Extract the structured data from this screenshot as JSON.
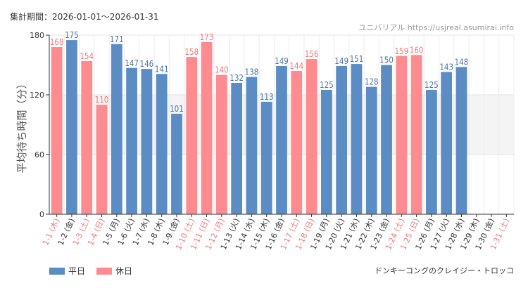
{
  "period_label": "集計期間：2026-01-01～2026-01-31",
  "site_label": "ユニバリアル https://usjreal.asumirai.info",
  "attraction_name": "ドンキーコングのクレイジー・トロッコ",
  "chart_data": {
    "type": "bar",
    "title": "",
    "xlabel": "",
    "ylabel": "平均待ち時間（分）",
    "ylim": [
      0,
      180
    ],
    "yticks": [
      0,
      60,
      120,
      180
    ],
    "shaded_band": [
      60,
      120
    ],
    "categories": [
      "1-1 (木)",
      "1-2 (金)",
      "1-3 (土)",
      "1-4 (日)",
      "1-5 (月)",
      "1-6 (火)",
      "1-7 (水)",
      "1-8 (木)",
      "1-9 (金)",
      "1-10 (土)",
      "1-11 (日)",
      "1-12 (月)",
      "1-13 (火)",
      "1-14 (水)",
      "1-15 (木)",
      "1-16 (金)",
      "1-17 (土)",
      "1-18 (日)",
      "1-19 (月)",
      "1-20 (火)",
      "1-21 (水)",
      "1-22 (木)",
      "1-23 (金)",
      "1-24 (土)",
      "1-25 (日)",
      "1-26 (月)",
      "1-27 (火)",
      "1-28 (水)",
      "1-29 (木)",
      "1-30 (金)",
      "1-31 (土)"
    ],
    "values": [
      168,
      175,
      154,
      110,
      171,
      147,
      146,
      141,
      101,
      158,
      173,
      140,
      132,
      138,
      113,
      149,
      144,
      156,
      125,
      149,
      151,
      128,
      150,
      159,
      160,
      125,
      143,
      148,
      null,
      null,
      null
    ],
    "day_type": [
      "holiday",
      "weekday",
      "holiday",
      "holiday",
      "weekday",
      "weekday",
      "weekday",
      "weekday",
      "weekday",
      "holiday",
      "holiday",
      "holiday",
      "weekday",
      "weekday",
      "weekday",
      "weekday",
      "holiday",
      "holiday",
      "weekday",
      "weekday",
      "weekday",
      "weekday",
      "weekday",
      "holiday",
      "holiday",
      "weekday",
      "weekday",
      "weekday",
      "weekday",
      "weekday",
      "holiday"
    ],
    "legend": [
      {
        "key": "weekday",
        "label": "平日",
        "color": "#5b8cc4"
      },
      {
        "key": "holiday",
        "label": "休日",
        "color": "#fd8b8f"
      }
    ],
    "label_colors": {
      "weekday": "#4a76a8",
      "holiday": "#f0787c",
      "weekday_axis": "#333333",
      "holiday_axis": "#f0787c"
    }
  }
}
